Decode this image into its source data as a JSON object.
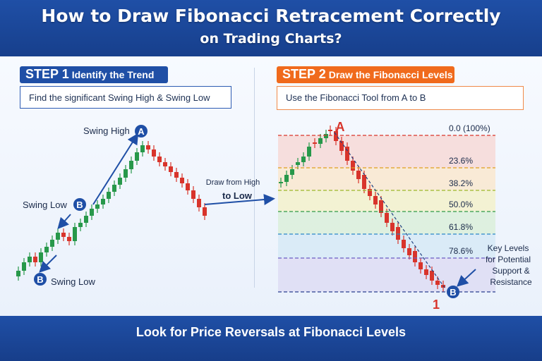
{
  "header": {
    "title_line1": "How to Draw Fibonacci Retracement Correctly",
    "title_line2": "on Trading Charts?"
  },
  "step1": {
    "number": "STEP 1",
    "title": "Identify the Trend",
    "subtitle": "Find the significant Swing High & Swing Low",
    "swing_high": "Swing High",
    "swing_low_mid": "Swing Low",
    "swing_low_bottom": "Swing Low",
    "marker_a": "A",
    "marker_b": "B"
  },
  "middle": {
    "line1": "Draw from High",
    "line2": "to Low"
  },
  "step2": {
    "number": "STEP 2",
    "title": "Draw the Fibonacci Levels",
    "subtitle": "Use the Fibonacci Tool from A to B",
    "marker_a": "A",
    "marker_b": "B",
    "marker_1": "1",
    "levels": [
      {
        "label": "0.0 (100%)",
        "color": "#d9342b"
      },
      {
        "label": "23.6%",
        "color": "#e0a020"
      },
      {
        "label": "38.2%",
        "color": "#9ab82a"
      },
      {
        "label": "50.0%",
        "color": "#2e9a48"
      },
      {
        "label": "61.8%",
        "color": "#2a86c8"
      },
      {
        "label": "78.6%",
        "color": "#6a5cc2"
      },
      {
        "label": "",
        "color": "#2b3f8f"
      }
    ],
    "note": [
      "Key Levels",
      "for Potential",
      "Support &",
      "Resistance"
    ]
  },
  "footer": {
    "text": "Look for Price Reversals at Fibonacci Levels"
  },
  "colors": {
    "brand_blue": "#1f4fa6",
    "accent_orange": "#f06a1c",
    "bull": "#27984a",
    "bear": "#d8342b"
  }
}
